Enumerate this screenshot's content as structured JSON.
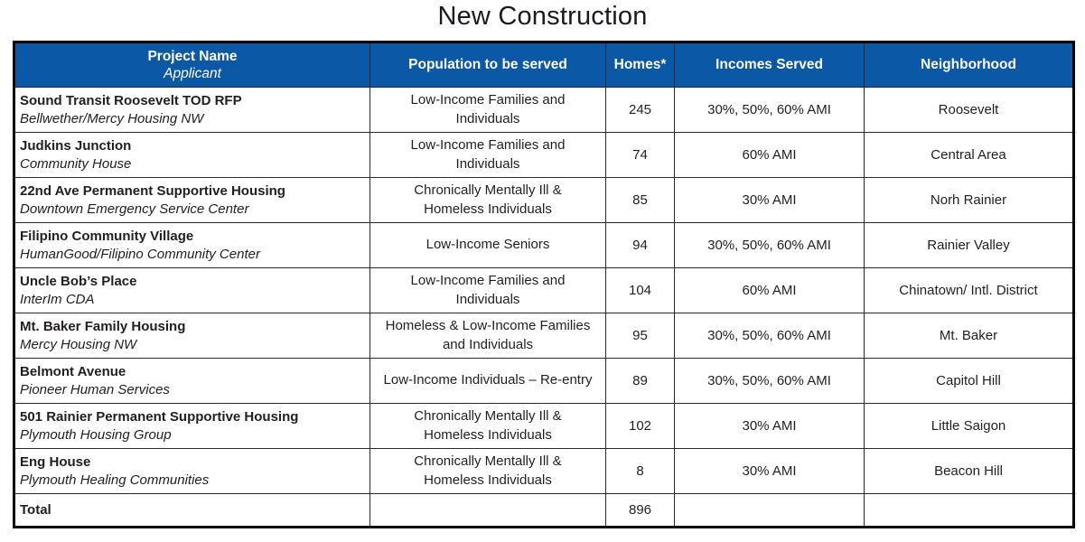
{
  "page": {
    "title": "New Construction"
  },
  "colors": {
    "header_bg": "#0b59a6",
    "header_text": "#ffffff",
    "body_text": "#231f20",
    "border": "#2a2a2e"
  },
  "table": {
    "columns": [
      {
        "label": "Project Name",
        "sublabel": "Applicant"
      },
      {
        "label": "Population to be served"
      },
      {
        "label": "Homes*"
      },
      {
        "label": "Incomes Served"
      },
      {
        "label": "Neighborhood"
      }
    ],
    "rows": [
      {
        "project": "Sound Transit Roosevelt TOD RFP",
        "applicant": "Bellwether/Mercy Housing NW",
        "population": "Low-Income Families and\nIndividuals",
        "homes": 245,
        "incomes": "30%, 50%, 60% AMI",
        "neighborhood": "Roosevelt"
      },
      {
        "project": "Judkins Junction",
        "applicant": "Community House",
        "population": "Low-Income Families and\nIndividuals",
        "homes": 74,
        "incomes": "60% AMI",
        "neighborhood": "Central Area"
      },
      {
        "project": "22nd Ave Permanent Supportive Housing",
        "applicant": "Downtown Emergency Service Center",
        "population": "Chronically Mentally Ill &\nHomeless Individuals",
        "homes": 85,
        "incomes": "30% AMI",
        "neighborhood": "Norh Rainier"
      },
      {
        "project": "Filipino Community Village",
        "applicant": "HumanGood/Filipino Community Center",
        "population": "Low-Income Seniors",
        "homes": 94,
        "incomes": "30%, 50%, 60% AMI",
        "neighborhood": "Rainier Valley"
      },
      {
        "project": "Uncle Bob’s Place",
        "applicant": "InterIm CDA",
        "population": "Low-Income Families and\nIndividuals",
        "homes": 104,
        "incomes": "60% AMI",
        "neighborhood": "Chinatown/ Intl. District"
      },
      {
        "project": "Mt. Baker Family Housing",
        "applicant": "Mercy Housing NW",
        "population": "Homeless & Low-Income Families\nand Individuals",
        "homes": 95,
        "incomes": "30%, 50%, 60% AMI",
        "neighborhood": "Mt. Baker"
      },
      {
        "project": "Belmont Avenue",
        "applicant": "Pioneer Human Services",
        "population": "Low-Income Individuals – Re-entry",
        "homes": 89,
        "incomes": "30%, 50%, 60% AMI",
        "neighborhood": "Capitol Hill"
      },
      {
        "project": "501 Rainier Permanent Supportive Housing",
        "applicant": "Plymouth Housing Group",
        "population": "Chronically Mentally Ill &\nHomeless Individuals",
        "homes": 102,
        "incomes": "30% AMI",
        "neighborhood": "Little Saigon"
      },
      {
        "project": "Eng House",
        "applicant": "Plymouth Healing Communities",
        "population": "Chronically Mentally Ill &\nHomeless Individuals",
        "homes": 8,
        "incomes": "30% AMI",
        "neighborhood": "Beacon Hill"
      }
    ],
    "total": {
      "label": "Total",
      "homes": 896
    }
  }
}
